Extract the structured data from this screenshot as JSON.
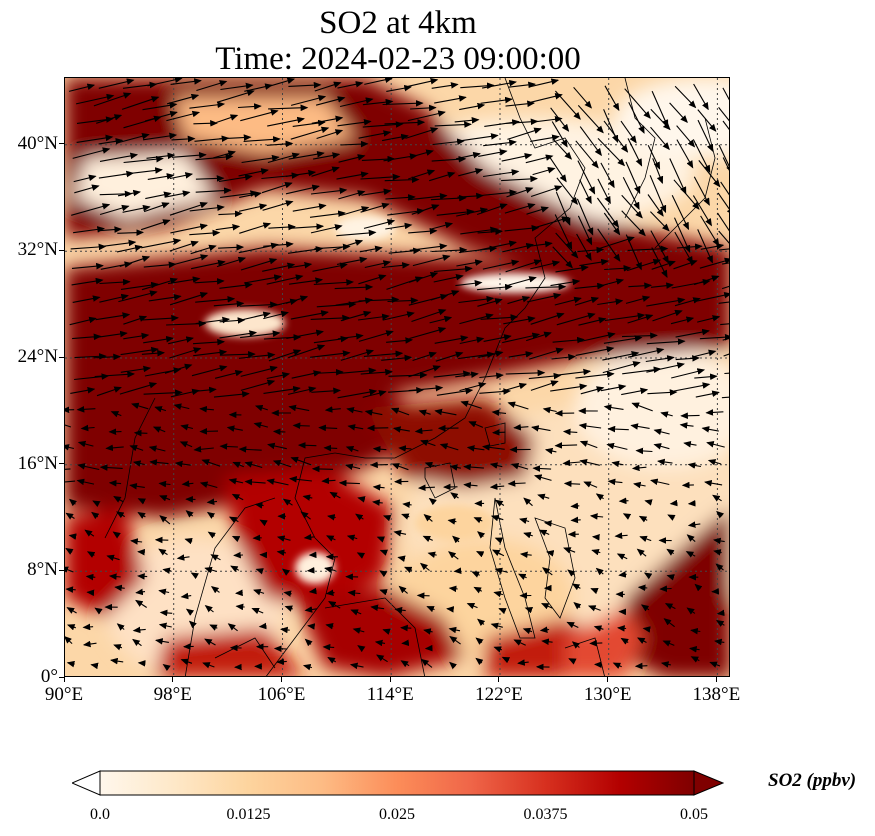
{
  "title_line1": "SO2 at 4km",
  "title_line2": "Time: 2024-02-23 09:00:00",
  "map": {
    "variable": "SO2",
    "level": "4km",
    "lon_range": [
      90,
      139
    ],
    "lat_range": [
      0,
      45
    ],
    "lon_ticks": [
      {
        "value": 90,
        "label": "90°E"
      },
      {
        "value": 98,
        "label": "98°E"
      },
      {
        "value": 106,
        "label": "106°E"
      },
      {
        "value": 114,
        "label": "114°E"
      },
      {
        "value": 122,
        "label": "122°E"
      },
      {
        "value": 130,
        "label": "130°E"
      },
      {
        "value": 138,
        "label": "138°E"
      }
    ],
    "lat_ticks": [
      {
        "value": 0,
        "label": "0°"
      },
      {
        "value": 8,
        "label": "8°N"
      },
      {
        "value": 16,
        "label": "16°N"
      },
      {
        "value": 24,
        "label": "24°N"
      },
      {
        "value": 32,
        "label": "32°N"
      },
      {
        "value": 40,
        "label": "40°N"
      }
    ],
    "gridlines": "dotted",
    "overlay": "wind vectors",
    "colormap": "OrRd"
  },
  "colorbar": {
    "label": "SO2 (ppbv)",
    "min": 0.0,
    "max": 0.05,
    "extend": "both",
    "ticks": [
      "0.0",
      "0.0125",
      "0.025",
      "0.0375",
      "0.05"
    ],
    "colors": [
      "#fff7ec",
      "#fee8c8",
      "#fdd49e",
      "#fdbb84",
      "#fc8d59",
      "#ef6548",
      "#d7301f",
      "#b30000",
      "#7f0000"
    ]
  }
}
